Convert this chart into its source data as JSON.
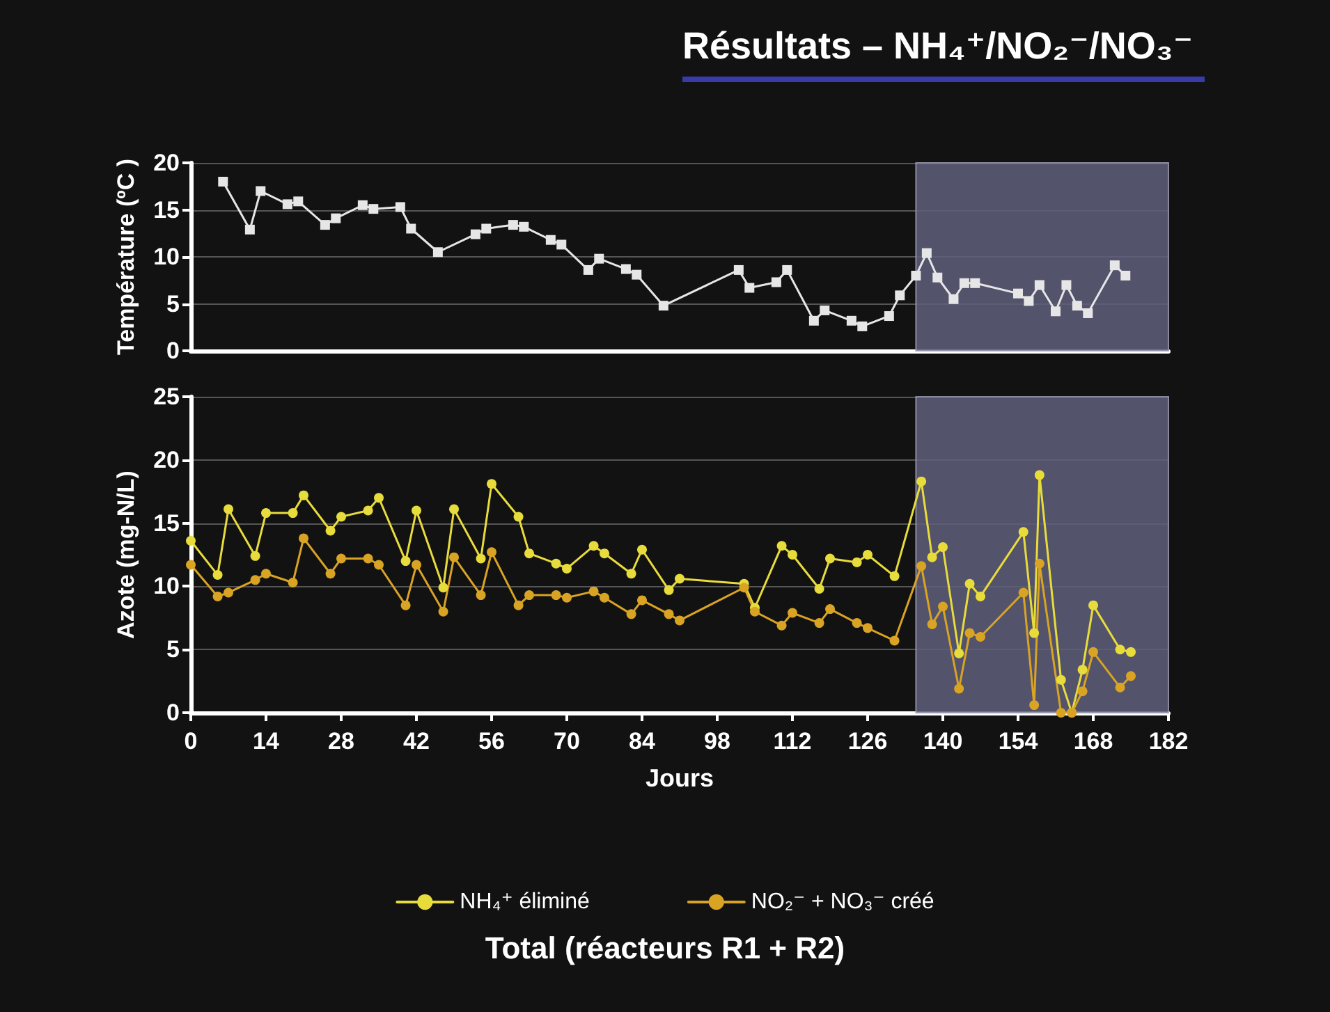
{
  "chart_data": [
    {
      "type": "line",
      "title": "Résultats – NH₄⁺/NO₂⁻/NO₃⁻",
      "ylabel": "Température (ºC )",
      "xlim": [
        0,
        182
      ],
      "xticks": [
        0,
        14,
        28,
        42,
        56,
        70,
        84,
        98,
        112,
        126,
        140,
        154,
        168,
        182
      ],
      "ylim": [
        0,
        20
      ],
      "yticks": [
        0,
        5,
        10,
        15,
        20
      ],
      "tick_labels": "y",
      "grid": "y",
      "marker": "square",
      "line_style": "solid",
      "legend": false,
      "bands": [
        {
          "axis": "x",
          "from": 135,
          "to": 182,
          "color": "#5f5f7c"
        }
      ],
      "series": [
        {
          "color": "#e6e6e6",
          "x": [
            6,
            11,
            13,
            18,
            20,
            25,
            27,
            32,
            34,
            39,
            41,
            46,
            53,
            55,
            60,
            62,
            67,
            69,
            74,
            76,
            81,
            83,
            88,
            102,
            104,
            109,
            111,
            116,
            118,
            123,
            125,
            130,
            132,
            135,
            137,
            139,
            142,
            144,
            146,
            154,
            156,
            158,
            161,
            163,
            165,
            167,
            172,
            174
          ],
          "values": [
            18,
            12.9,
            17.0,
            15.6,
            15.9,
            13.4,
            14.1,
            15.5,
            15.1,
            15.3,
            13.0,
            10.5,
            12.4,
            13.0,
            13.4,
            13.2,
            11.8,
            11.3,
            8.6,
            9.8,
            8.7,
            8.1,
            4.8,
            8.6,
            6.7,
            7.3,
            8.6,
            3.2,
            4.3,
            3.2,
            2.6,
            3.7,
            5.9,
            8.0,
            10.4,
            7.8,
            5.5,
            7.2,
            7.2,
            6.1,
            5.3,
            7.0,
            4.2,
            7.0,
            4.8,
            4.0,
            9.1,
            8.0
          ]
        }
      ]
    },
    {
      "type": "line",
      "xlabel": "Jours",
      "ylabel": "Azote (mg-N/L)",
      "xlim": [
        0,
        182
      ],
      "xticks": [
        0,
        14,
        28,
        42,
        56,
        70,
        84,
        98,
        112,
        126,
        140,
        154,
        168,
        182
      ],
      "ylim": [
        0,
        25
      ],
      "yticks": [
        0,
        5,
        10,
        15,
        20,
        25
      ],
      "grid": "y",
      "marker": "circle",
      "line_style": "solid",
      "legend": "bottom",
      "annotations": [
        "Total (réacteurs R1 + R2)"
      ],
      "bands": [
        {
          "axis": "x",
          "from": 135,
          "to": 182,
          "color": "#5f5f7c"
        }
      ],
      "x": [
        0,
        5,
        7,
        12,
        14,
        19,
        21,
        26,
        28,
        33,
        35,
        40,
        42,
        47,
        49,
        54,
        56,
        61,
        63,
        68,
        70,
        75,
        77,
        82,
        84,
        89,
        91,
        103,
        105,
        110,
        112,
        117,
        119,
        124,
        126,
        131,
        136,
        138,
        140,
        143,
        145,
        147,
        155,
        157,
        158,
        162,
        164,
        166,
        168,
        173,
        175
      ],
      "series": [
        {
          "name": "NH₄⁺ éliminé",
          "color": "#e8dc3c",
          "values": [
            13.6,
            10.9,
            16.1,
            12.4,
            15.8,
            15.8,
            17.2,
            14.4,
            15.5,
            16.0,
            17.0,
            12.0,
            16.0,
            9.9,
            16.1,
            12.2,
            18.1,
            15.5,
            12.6,
            11.8,
            11.4,
            13.2,
            12.6,
            11.0,
            12.9,
            9.7,
            10.6,
            10.2,
            8.3,
            13.2,
            12.5,
            9.8,
            12.2,
            11.9,
            12.5,
            10.8,
            18.3,
            12.3,
            13.1,
            4.7,
            10.2,
            9.2,
            14.3,
            6.3,
            18.8,
            2.6,
            0,
            3.4,
            8.5,
            5.0,
            4.8
          ]
        },
        {
          "name": "NO₂⁻ + NO₃⁻ créé",
          "color": "#d9a324",
          "values": [
            11.7,
            9.2,
            9.5,
            10.5,
            11.0,
            10.3,
            13.8,
            11.0,
            12.2,
            12.2,
            11.7,
            8.5,
            11.7,
            8.0,
            12.3,
            9.3,
            12.7,
            8.5,
            9.3,
            9.3,
            9.1,
            9.6,
            9.1,
            7.8,
            8.9,
            7.8,
            7.3,
            9.9,
            8.0,
            6.9,
            7.9,
            7.1,
            8.2,
            7.1,
            6.7,
            5.7,
            11.6,
            7.0,
            8.4,
            1.9,
            6.3,
            6.0,
            9.5,
            0.6,
            11.8,
            0,
            0,
            1.7,
            4.8,
            2.0,
            2.9
          ]
        }
      ]
    }
  ]
}
